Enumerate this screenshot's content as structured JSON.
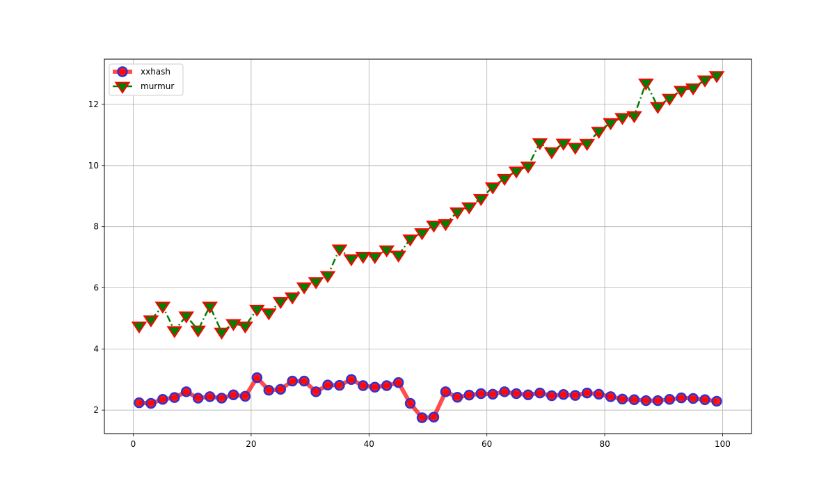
{
  "chart_data": {
    "type": "line",
    "title": "",
    "xlabel": "",
    "ylabel": "",
    "xlim": [
      -4.9,
      104.9
    ],
    "ylim": [
      1.23,
      13.48
    ],
    "xticks": [
      0,
      20,
      40,
      60,
      80,
      100
    ],
    "yticks": [
      2,
      4,
      6,
      8,
      10,
      12
    ],
    "grid": true,
    "legend_position": "upper-left",
    "x": [
      1,
      3,
      5,
      7,
      9,
      11,
      13,
      15,
      17,
      19,
      21,
      23,
      25,
      27,
      29,
      31,
      33,
      35,
      37,
      39,
      41,
      43,
      45,
      47,
      49,
      51,
      53,
      55,
      57,
      59,
      61,
      63,
      65,
      67,
      69,
      71,
      73,
      75,
      77,
      79,
      81,
      83,
      85,
      87,
      89,
      91,
      93,
      95,
      97,
      99
    ],
    "series": [
      {
        "name": "xxhash",
        "line_color": "#ff0000",
        "marker": "circle",
        "marker_face": "#ff0000",
        "marker_edge": "#3333cc",
        "line_style": "solid",
        "values": [
          2.24,
          2.22,
          2.35,
          2.41,
          2.6,
          2.39,
          2.44,
          2.39,
          2.5,
          2.45,
          3.06,
          2.65,
          2.68,
          2.95,
          2.95,
          2.6,
          2.82,
          2.81,
          3.0,
          2.8,
          2.75,
          2.8,
          2.9,
          2.22,
          1.75,
          1.77,
          2.6,
          2.42,
          2.49,
          2.54,
          2.52,
          2.6,
          2.54,
          2.5,
          2.56,
          2.47,
          2.51,
          2.48,
          2.56,
          2.52,
          2.44,
          2.36,
          2.34,
          2.31,
          2.31,
          2.35,
          2.4,
          2.38,
          2.34,
          2.29
        ]
      },
      {
        "name": "murmur",
        "line_color": "#008000",
        "marker": "triangle-down",
        "marker_face": "#008000",
        "marker_edge": "#ff0000",
        "line_style": "dash-dot",
        "values": [
          4.75,
          4.95,
          5.4,
          4.6,
          5.08,
          4.62,
          5.4,
          4.55,
          4.83,
          4.75,
          5.3,
          5.18,
          5.55,
          5.7,
          6.03,
          6.2,
          6.4,
          7.27,
          6.95,
          7.03,
          7.02,
          7.24,
          7.07,
          7.6,
          7.8,
          8.05,
          8.1,
          8.48,
          8.65,
          8.92,
          9.3,
          9.58,
          9.82,
          9.98,
          10.75,
          10.45,
          10.73,
          10.6,
          10.72,
          11.12,
          11.4,
          11.57,
          11.63,
          12.7,
          11.93,
          12.2,
          12.46,
          12.54,
          12.8,
          12.94
        ]
      }
    ]
  }
}
